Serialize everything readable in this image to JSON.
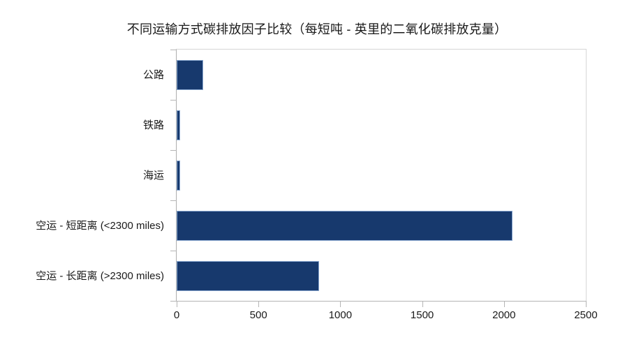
{
  "chart_data": {
    "type": "bar",
    "orientation": "horizontal",
    "title": "不同运输方式碳排放因子比较（每短吨 - 英里的二氧化碳排放克量）",
    "categories": [
      "公路",
      "铁路",
      "海运",
      "空运 - 短距离 (<2300 miles)",
      "空运 - 长距离 (>2300 miles)"
    ],
    "values": [
      162,
      23,
      20,
      2050,
      870
    ],
    "xticks": [
      0,
      500,
      1000,
      1500,
      2000,
      2500
    ],
    "xlim": [
      0,
      2500
    ],
    "xlabel": "",
    "ylabel": "",
    "grid": false,
    "legend": null,
    "bar_color": "#17396D",
    "bar_border_color": "#89A7CF",
    "axis_color": "#B5B5B5",
    "text_color": "#1A1A1A",
    "background_color": "#FFFFFF"
  }
}
